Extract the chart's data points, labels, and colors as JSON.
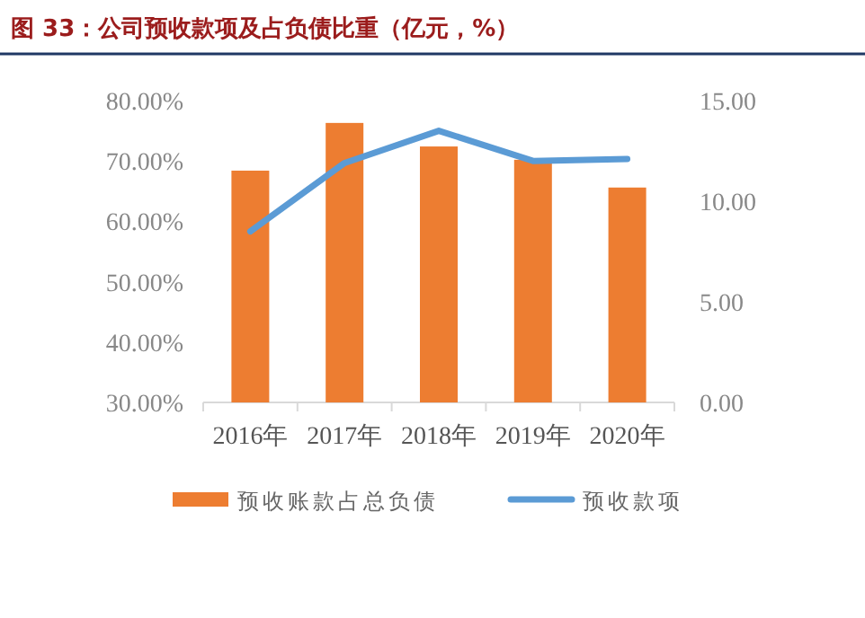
{
  "chart_data": {
    "type": "bar",
    "title": "图 33：公司预收款项及占负债比重（亿元，%）",
    "categories": [
      "2016年",
      "2017年",
      "2018年",
      "2019年",
      "2020年"
    ],
    "series": [
      {
        "name": "预收账款占总负债",
        "color": "#ed7d31",
        "values": [
          68.4,
          76.3,
          72.4,
          70.2,
          65.6
        ]
      },
      {
        "name": "预收款项",
        "type": "line",
        "axis": "y2",
        "color": "#5b9bd5",
        "values": [
          8.5,
          11.9,
          13.5,
          12.0,
          12.1
        ]
      }
    ],
    "ylim": [
      30,
      80
    ],
    "yticks": [
      {
        "value": 30,
        "label": "30.00%"
      },
      {
        "value": 40,
        "label": "40.00%"
      },
      {
        "value": 50,
        "label": "50.00%"
      },
      {
        "value": 60,
        "label": "60.00%"
      },
      {
        "value": 70,
        "label": "70.00%"
      },
      {
        "value": 80,
        "label": "80.00%"
      }
    ],
    "y2lim": [
      0,
      15
    ],
    "y2ticks": [
      {
        "value": 0,
        "label": "0.00"
      },
      {
        "value": 5,
        "label": "5.00"
      },
      {
        "value": 10,
        "label": "10.00"
      },
      {
        "value": 15,
        "label": "15.00"
      }
    ],
    "grid": false,
    "legend": "bottom"
  }
}
